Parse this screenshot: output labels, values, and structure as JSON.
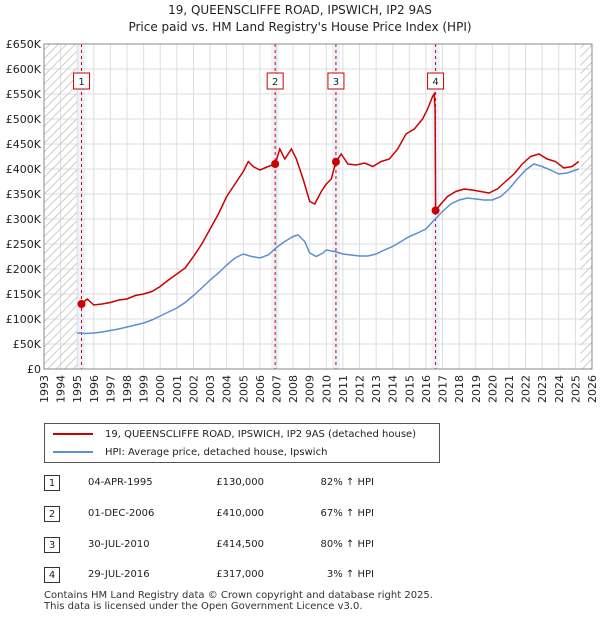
{
  "chart_data": {
    "type": "line",
    "title": "19, QUEENSCLIFFE ROAD, IPSWICH, IP2 9AS",
    "subtitle": "Price paid vs. HM Land Registry's House Price Index (HPI)",
    "xlim": [
      1993,
      2026
    ],
    "ylim": [
      0,
      650000
    ],
    "y_ticks": [
      {
        "value": 0,
        "label": "£0"
      },
      {
        "value": 50000,
        "label": "£50K"
      },
      {
        "value": 100000,
        "label": "£100K"
      },
      {
        "value": 150000,
        "label": "£150K"
      },
      {
        "value": 200000,
        "label": "£200K"
      },
      {
        "value": 250000,
        "label": "£250K"
      },
      {
        "value": 300000,
        "label": "£300K"
      },
      {
        "value": 350000,
        "label": "£350K"
      },
      {
        "value": 400000,
        "label": "£400K"
      },
      {
        "value": 450000,
        "label": "£450K"
      },
      {
        "value": 500000,
        "label": "£500K"
      },
      {
        "value": 550000,
        "label": "£550K"
      },
      {
        "value": 600000,
        "label": "£600K"
      },
      {
        "value": 650000,
        "label": "£650K"
      }
    ],
    "x_ticks": [
      "1993",
      "1994",
      "1995",
      "1996",
      "1997",
      "1998",
      "1999",
      "2000",
      "2001",
      "2002",
      "2003",
      "2004",
      "2005",
      "2006",
      "2007",
      "2008",
      "2009",
      "2010",
      "2011",
      "2012",
      "2013",
      "2014",
      "2015",
      "2016",
      "2017",
      "2018",
      "2019",
      "2020",
      "2021",
      "2022",
      "2023",
      "2024",
      "2025",
      "2026"
    ],
    "series": [
      {
        "name": "19, QUEENSCLIFFE ROAD, IPSWICH, IP2 9AS (detached house)",
        "color": "#cc0000",
        "points": [
          [
            1995.26,
            130000
          ],
          [
            1995.6,
            140000
          ],
          [
            1996,
            128000
          ],
          [
            1996.5,
            130000
          ],
          [
            1997,
            133000
          ],
          [
            1997.5,
            138000
          ],
          [
            1998,
            140000
          ],
          [
            1998.5,
            147000
          ],
          [
            1999,
            150000
          ],
          [
            1999.5,
            155000
          ],
          [
            2000,
            165000
          ],
          [
            2000.5,
            178000
          ],
          [
            2001,
            190000
          ],
          [
            2001.5,
            202000
          ],
          [
            2002,
            225000
          ],
          [
            2002.5,
            250000
          ],
          [
            2003,
            280000
          ],
          [
            2003.5,
            310000
          ],
          [
            2004,
            345000
          ],
          [
            2004.5,
            370000
          ],
          [
            2005,
            395000
          ],
          [
            2005.3,
            415000
          ],
          [
            2005.6,
            405000
          ],
          [
            2006,
            398000
          ],
          [
            2006.5,
            405000
          ],
          [
            2006.92,
            410000
          ],
          [
            2007.2,
            440000
          ],
          [
            2007.5,
            420000
          ],
          [
            2007.9,
            440000
          ],
          [
            2008.2,
            420000
          ],
          [
            2008.6,
            380000
          ],
          [
            2009,
            335000
          ],
          [
            2009.3,
            330000
          ],
          [
            2009.7,
            355000
          ],
          [
            2010,
            370000
          ],
          [
            2010.3,
            380000
          ],
          [
            2010.58,
            414500
          ],
          [
            2010.9,
            430000
          ],
          [
            2011.3,
            410000
          ],
          [
            2011.8,
            408000
          ],
          [
            2012.3,
            412000
          ],
          [
            2012.8,
            405000
          ],
          [
            2013.3,
            415000
          ],
          [
            2013.8,
            420000
          ],
          [
            2014.3,
            440000
          ],
          [
            2014.8,
            470000
          ],
          [
            2015.3,
            480000
          ],
          [
            2015.8,
            500000
          ],
          [
            2016.1,
            520000
          ],
          [
            2016.4,
            545000
          ],
          [
            2016.5,
            550000
          ],
          [
            2016.55,
            520000
          ],
          [
            2016.58,
            317000
          ],
          [
            2016.9,
            330000
          ],
          [
            2017.3,
            345000
          ],
          [
            2017.8,
            355000
          ],
          [
            2018.3,
            360000
          ],
          [
            2018.8,
            358000
          ],
          [
            2019.3,
            355000
          ],
          [
            2019.8,
            352000
          ],
          [
            2020.3,
            360000
          ],
          [
            2020.8,
            375000
          ],
          [
            2021.3,
            390000
          ],
          [
            2021.8,
            410000
          ],
          [
            2022.3,
            425000
          ],
          [
            2022.8,
            430000
          ],
          [
            2023.3,
            420000
          ],
          [
            2023.8,
            415000
          ],
          [
            2024.3,
            402000
          ],
          [
            2024.8,
            405000
          ],
          [
            2025.2,
            415000
          ]
        ]
      },
      {
        "name": "HPI: Average price, detached house, Ipswich",
        "color": "#5b8fd1",
        "points": [
          [
            1995,
            72000
          ],
          [
            1995.5,
            71000
          ],
          [
            1996,
            72000
          ],
          [
            1996.5,
            74000
          ],
          [
            1997,
            77000
          ],
          [
            1997.5,
            80000
          ],
          [
            1998,
            84000
          ],
          [
            1998.5,
            88000
          ],
          [
            1999,
            92000
          ],
          [
            1999.5,
            98000
          ],
          [
            2000,
            106000
          ],
          [
            2000.5,
            114000
          ],
          [
            2001,
            122000
          ],
          [
            2001.5,
            133000
          ],
          [
            2002,
            147000
          ],
          [
            2002.5,
            162000
          ],
          [
            2003,
            178000
          ],
          [
            2003.5,
            192000
          ],
          [
            2004,
            208000
          ],
          [
            2004.5,
            222000
          ],
          [
            2005,
            230000
          ],
          [
            2005.5,
            225000
          ],
          [
            2006,
            222000
          ],
          [
            2006.5,
            228000
          ],
          [
            2007,
            243000
          ],
          [
            2007.5,
            255000
          ],
          [
            2008,
            265000
          ],
          [
            2008.3,
            268000
          ],
          [
            2008.7,
            255000
          ],
          [
            2009,
            232000
          ],
          [
            2009.4,
            225000
          ],
          [
            2009.8,
            232000
          ],
          [
            2010,
            238000
          ],
          [
            2010.5,
            235000
          ],
          [
            2011,
            230000
          ],
          [
            2011.5,
            228000
          ],
          [
            2012,
            226000
          ],
          [
            2012.5,
            226000
          ],
          [
            2013,
            230000
          ],
          [
            2013.5,
            238000
          ],
          [
            2014,
            245000
          ],
          [
            2014.5,
            255000
          ],
          [
            2015,
            265000
          ],
          [
            2015.5,
            272000
          ],
          [
            2016,
            280000
          ],
          [
            2016.5,
            298000
          ],
          [
            2017,
            315000
          ],
          [
            2017.5,
            330000
          ],
          [
            2018,
            338000
          ],
          [
            2018.5,
            342000
          ],
          [
            2019,
            340000
          ],
          [
            2019.5,
            338000
          ],
          [
            2020,
            338000
          ],
          [
            2020.5,
            345000
          ],
          [
            2021,
            360000
          ],
          [
            2021.5,
            380000
          ],
          [
            2022,
            398000
          ],
          [
            2022.5,
            410000
          ],
          [
            2023,
            405000
          ],
          [
            2023.5,
            398000
          ],
          [
            2024,
            390000
          ],
          [
            2024.5,
            392000
          ],
          [
            2025.2,
            400000
          ]
        ]
      }
    ],
    "sales": [
      {
        "id": "1",
        "x": 1995.26,
        "y": 130000
      },
      {
        "id": "2",
        "x": 2006.92,
        "y": 410000
      },
      {
        "id": "3",
        "x": 2010.58,
        "y": 414500
      },
      {
        "id": "4",
        "x": 2016.58,
        "y": 317000
      }
    ]
  },
  "legend": {
    "property": "19, QUEENSCLIFFE ROAD, IPSWICH, IP2 9AS (detached house)",
    "hpi": "HPI: Average price, detached house, Ipswich"
  },
  "transactions": [
    {
      "id": "1",
      "date": "04-APR-1995",
      "price": "£130,000",
      "hpi": "82% ↑ HPI"
    },
    {
      "id": "2",
      "date": "01-DEC-2006",
      "price": "£410,000",
      "hpi": "67% ↑ HPI"
    },
    {
      "id": "3",
      "date": "30-JUL-2010",
      "price": "£414,500",
      "hpi": "80% ↑ HPI"
    },
    {
      "id": "4",
      "date": "29-JUL-2016",
      "price": "£317,000",
      "hpi": "3% ↑ HPI"
    }
  ],
  "footer": {
    "line1": "Contains HM Land Registry data © Crown copyright and database right 2025.",
    "line2": "This data is licensed under the Open Government Licence v3.0."
  }
}
